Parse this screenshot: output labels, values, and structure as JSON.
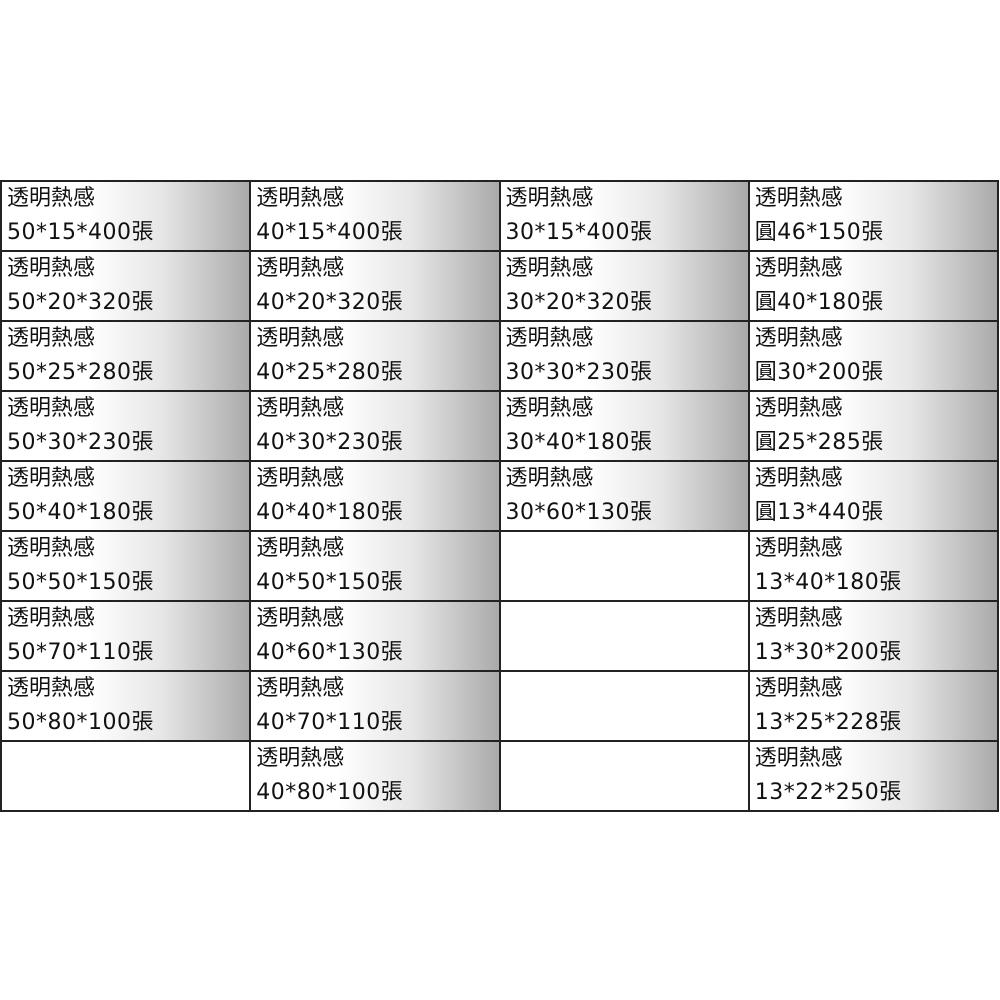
{
  "columns": [
    [
      {
        "name": "透明熱感",
        "size": "50*15*400張"
      },
      {
        "name": "透明熱感",
        "size": "50*20*320張"
      },
      {
        "name": "透明熱感",
        "size": "50*25*280張"
      },
      {
        "name": "透明熱感",
        "size": "50*30*230張"
      },
      {
        "name": "透明熱感",
        "size": "50*40*180張"
      },
      {
        "name": "透明熱感",
        "size": "50*50*150張"
      },
      {
        "name": "透明熱感",
        "size": "50*70*110張"
      },
      {
        "name": "透明熱感",
        "size": "50*80*100張"
      },
      null
    ],
    [
      {
        "name": "透明熱感",
        "size": "40*15*400張"
      },
      {
        "name": "透明熱感",
        "size": "40*20*320張"
      },
      {
        "name": "透明熱感",
        "size": "40*25*280張"
      },
      {
        "name": "透明熱感",
        "size": "40*30*230張"
      },
      {
        "name": "透明熱感",
        "size": "40*40*180張"
      },
      {
        "name": "透明熱感",
        "size": "40*50*150張"
      },
      {
        "name": "透明熱感",
        "size": "40*60*130張"
      },
      {
        "name": "透明熱感",
        "size": "40*70*110張"
      },
      {
        "name": "透明熱感",
        "size": "40*80*100張"
      }
    ],
    [
      {
        "name": "透明熱感",
        "size": "30*15*400張"
      },
      {
        "name": "透明熱感",
        "size": "30*20*320張"
      },
      {
        "name": "透明熱感",
        "size": "30*30*230張"
      },
      {
        "name": "透明熱感",
        "size": "30*40*180張"
      },
      {
        "name": "透明熱感",
        "size": "30*60*130張"
      },
      null,
      null,
      null,
      null
    ],
    [
      {
        "name": "透明熱感",
        "size": "圓46*150張"
      },
      {
        "name": "透明熱感",
        "size": "圓40*180張"
      },
      {
        "name": "透明熱感",
        "size": "圓30*200張"
      },
      {
        "name": "透明熱感",
        "size": "圓25*285張"
      },
      {
        "name": "透明熱感",
        "size": "圓13*440張"
      },
      {
        "name": "透明熱感",
        "size": "13*40*180張"
      },
      {
        "name": "透明熱感",
        "size": "13*30*200張"
      },
      {
        "name": "透明熱感",
        "size": "13*25*228張"
      },
      {
        "name": "透明熱感",
        "size": "13*22*250張"
      }
    ]
  ]
}
